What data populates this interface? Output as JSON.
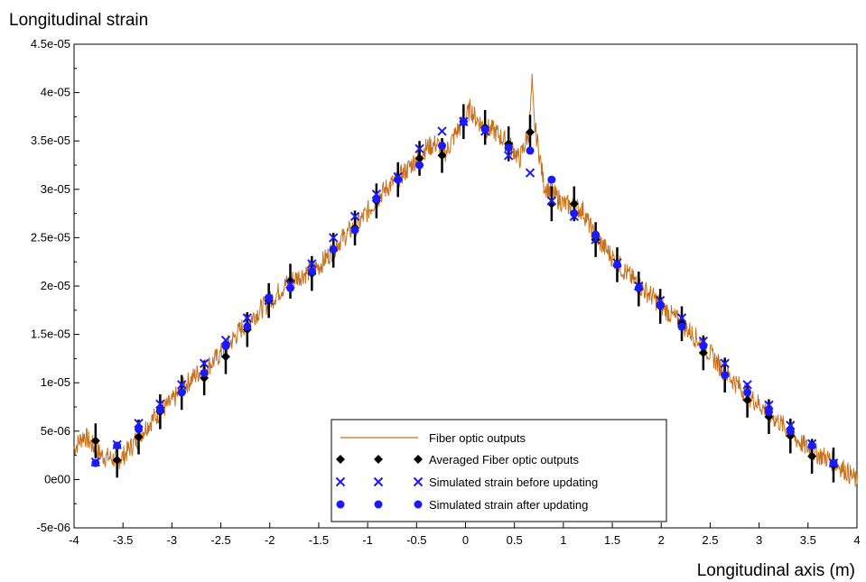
{
  "chart_data": {
    "type": "scatter",
    "title": "",
    "ylabel": "Longitudinal strain",
    "xlabel": "Longitudinal axis (m)",
    "xlim": [
      -4,
      4
    ],
    "ylim": [
      -5e-06,
      4.5e-05
    ],
    "x_ticks": [
      "-4",
      "-3.5",
      "-3",
      "-2.5",
      "-2",
      "-1.5",
      "-1",
      "-0.5",
      "0",
      "0.5",
      "1",
      "1.5",
      "2",
      "2.5",
      "3",
      "3.5",
      "4"
    ],
    "x_tick_values": [
      -4,
      -3.5,
      -3,
      -2.5,
      -2,
      -1.5,
      -1,
      -0.5,
      0,
      0.5,
      1,
      1.5,
      2,
      2.5,
      3,
      3.5,
      4
    ],
    "y_ticks": [
      "-5e-06",
      "0e00",
      "5e-06",
      "1e-05",
      "1.5e-05",
      "2e-05",
      "2.5e-05",
      "3e-05",
      "3.5e-05",
      "4e-05",
      "4.5e-05"
    ],
    "y_tick_values": [
      -5e-06,
      0,
      5e-06,
      1e-05,
      1.5e-05,
      2e-05,
      2.5e-05,
      3e-05,
      3.5e-05,
      4e-05,
      4.5e-05
    ],
    "grid": false,
    "legend_position": "bottom-center",
    "series": [
      {
        "name": "Fiber optic outputs",
        "kind": "line",
        "color": "#c8701a",
        "x": [
          -4.0,
          -3.9,
          -3.82,
          -3.75,
          -3.7,
          -3.62,
          -3.55,
          -3.5,
          -3.4,
          -3.3,
          -3.2,
          -3.1,
          -3.0,
          -2.9,
          -2.8,
          -2.7,
          -2.6,
          -2.5,
          -2.4,
          -2.3,
          -2.2,
          -2.1,
          -2.0,
          -1.9,
          -1.8,
          -1.7,
          -1.6,
          -1.5,
          -1.4,
          -1.3,
          -1.2,
          -1.1,
          -1.0,
          -0.9,
          -0.8,
          -0.7,
          -0.6,
          -0.5,
          -0.4,
          -0.3,
          -0.2,
          -0.1,
          0.0,
          0.05,
          0.1,
          0.2,
          0.3,
          0.4,
          0.5,
          0.55,
          0.6,
          0.65,
          0.68,
          0.7,
          0.75,
          0.8,
          0.9,
          1.0,
          1.1,
          1.2,
          1.3,
          1.4,
          1.5,
          1.6,
          1.7,
          1.8,
          1.9,
          2.0,
          2.1,
          2.2,
          2.3,
          2.4,
          2.5,
          2.6,
          2.7,
          2.8,
          2.9,
          3.0,
          3.1,
          3.2,
          3.3,
          3.4,
          3.5,
          3.6,
          3.7,
          3.8,
          3.9,
          4.0
        ],
        "y": [
          3.2e-06,
          4.6e-06,
          3.6e-06,
          2.8e-06,
          2.4e-06,
          2.2e-06,
          2e-06,
          2.4e-06,
          3.6e-06,
          5e-06,
          6.2e-06,
          7.2e-06,
          8e-06,
          9.4e-06,
          1.04e-05,
          1.13e-05,
          1.2e-05,
          1.3e-05,
          1.42e-05,
          1.55e-05,
          1.66e-05,
          1.75e-05,
          1.84e-05,
          1.95e-05,
          2.05e-05,
          2.1e-05,
          2.15e-05,
          2.2e-05,
          2.32e-05,
          2.45e-05,
          2.55e-05,
          2.64e-05,
          2.77e-05,
          2.91e-05,
          3.02e-05,
          3.1e-05,
          3.2e-05,
          3.32e-05,
          3.43e-05,
          3.47e-05,
          3.38e-05,
          3.58e-05,
          3.73e-05,
          3.84e-05,
          3.74e-05,
          3.64e-05,
          3.6e-05,
          3.5e-05,
          3.4e-05,
          3.3e-05,
          3.45e-05,
          3.6e-05,
          4.1e-05,
          3.7e-05,
          3.4e-05,
          3.05e-05,
          2.95e-05,
          2.85e-05,
          2.82e-05,
          2.78e-05,
          2.55e-05,
          2.42e-05,
          2.3e-05,
          2.18e-05,
          2.08e-05,
          1.98e-05,
          1.9e-05,
          1.8e-05,
          1.7e-05,
          1.62e-05,
          1.52e-05,
          1.42e-05,
          1.3e-05,
          1.17e-05,
          1.06e-05,
          9.6e-06,
          8.6e-06,
          7.8e-06,
          6.8e-06,
          6e-06,
          5e-06,
          4e-06,
          3.2e-06,
          2.6e-06,
          2.2e-06,
          1.6e-06,
          8e-07,
          -2e-07
        ]
      },
      {
        "name": "Averaged Fiber optic outputs",
        "kind": "marker-diamond",
        "color": "#000000",
        "x": [
          -3.78,
          -3.56,
          -3.34,
          -3.12,
          -2.9,
          -2.67,
          -2.45,
          -2.23,
          -2.01,
          -1.79,
          -1.57,
          -1.35,
          -1.13,
          -0.91,
          -0.69,
          -0.47,
          -0.24,
          -0.02,
          0.2,
          0.44,
          0.66,
          0.88,
          1.11,
          1.33,
          1.55,
          1.77,
          1.99,
          2.21,
          2.43,
          2.65,
          2.88,
          3.1,
          3.32,
          3.54,
          3.76
        ],
        "y": [
          4e-06,
          2e-06,
          4.4e-06,
          7e-06,
          9e-06,
          1.05e-05,
          1.27e-05,
          1.55e-05,
          1.85e-05,
          2.05e-05,
          2.13e-05,
          2.37e-05,
          2.6e-05,
          2.88e-05,
          3.1e-05,
          3.32e-05,
          3.35e-05,
          3.7e-05,
          3.64e-05,
          3.47e-05,
          3.59e-05,
          2.85e-05,
          2.85e-05,
          2.48e-05,
          2.22e-05,
          1.97e-05,
          1.79e-05,
          1.61e-05,
          1.31e-05,
          1.08e-05,
          8.2e-06,
          6.5e-06,
          4.5e-06,
          2.4e-06,
          1.5e-06
        ],
        "error": [
          1.8e-06,
          1.8e-06,
          1.8e-06,
          1.8e-06,
          1.8e-06,
          1.8e-06,
          1.8e-06,
          1.8e-06,
          1.8e-06,
          1.8e-06,
          1.8e-06,
          1.8e-06,
          1.8e-06,
          1.8e-06,
          1.8e-06,
          1.8e-06,
          1.8e-06,
          1.8e-06,
          1.8e-06,
          1.8e-06,
          1.8e-06,
          1.8e-06,
          1.8e-06,
          1.8e-06,
          1.8e-06,
          1.8e-06,
          1.8e-06,
          1.8e-06,
          1.8e-06,
          1.8e-06,
          1.8e-06,
          1.8e-06,
          1.8e-06,
          1.8e-06,
          1.8e-06
        ]
      },
      {
        "name": "Simulated strain before updating",
        "kind": "marker-x",
        "color": "#1a1aff",
        "x": [
          -3.78,
          -3.56,
          -3.34,
          -3.12,
          -2.9,
          -2.67,
          -2.45,
          -2.23,
          -2.01,
          -1.79,
          -1.57,
          -1.35,
          -1.13,
          -0.91,
          -0.69,
          -0.47,
          -0.24,
          -0.02,
          0.2,
          0.44,
          0.66,
          0.88,
          1.11,
          1.33,
          1.55,
          1.77,
          1.99,
          2.21,
          2.43,
          2.65,
          2.88,
          3.1,
          3.32,
          3.54,
          3.76
        ],
        "y": [
          1.8e-06,
          3.6e-06,
          5.8e-06,
          7.8e-06,
          9.8e-06,
          1.2e-05,
          1.44e-05,
          1.67e-05,
          1.85e-05,
          2.02e-05,
          2.23e-05,
          2.5e-05,
          2.72e-05,
          2.95e-05,
          3.13e-05,
          3.42e-05,
          3.6e-05,
          3.7e-05,
          3.6e-05,
          3.35e-05,
          3.17e-05,
          2.88e-05,
          2.72e-05,
          2.48e-05,
          2.24e-05,
          2e-05,
          1.85e-05,
          1.67e-05,
          1.43e-05,
          1.2e-05,
          9.8e-06,
          7.7e-06,
          5.6e-06,
          3.7e-06,
          1.7e-06
        ]
      },
      {
        "name": "Simulated strain after updating",
        "kind": "marker-dot",
        "color": "#1a1aff",
        "x": [
          -3.78,
          -3.56,
          -3.34,
          -3.12,
          -2.9,
          -2.67,
          -2.45,
          -2.23,
          -2.01,
          -1.79,
          -1.57,
          -1.35,
          -1.13,
          -0.91,
          -0.69,
          -0.47,
          -0.24,
          -0.02,
          0.2,
          0.44,
          0.66,
          0.88,
          1.11,
          1.33,
          1.55,
          1.77,
          1.99,
          2.21,
          2.43,
          2.65,
          2.88,
          3.1,
          3.32,
          3.54,
          3.76
        ],
        "y": [
          1.7e-06,
          3.5e-06,
          5.2e-06,
          7.2e-06,
          9e-06,
          1.1e-05,
          1.38e-05,
          1.58e-05,
          1.88e-05,
          1.98e-05,
          2.15e-05,
          2.38e-05,
          2.58e-05,
          2.9e-05,
          3.1e-05,
          3.25e-05,
          3.45e-05,
          3.7e-05,
          3.62e-05,
          3.43e-05,
          3.4e-05,
          3.1e-05,
          2.75e-05,
          2.53e-05,
          2.22e-05,
          1.98e-05,
          1.8e-05,
          1.58e-05,
          1.38e-05,
          1.08e-05,
          9e-06,
          7e-06,
          5e-06,
          3.5e-06,
          1.7e-06
        ]
      }
    ]
  }
}
